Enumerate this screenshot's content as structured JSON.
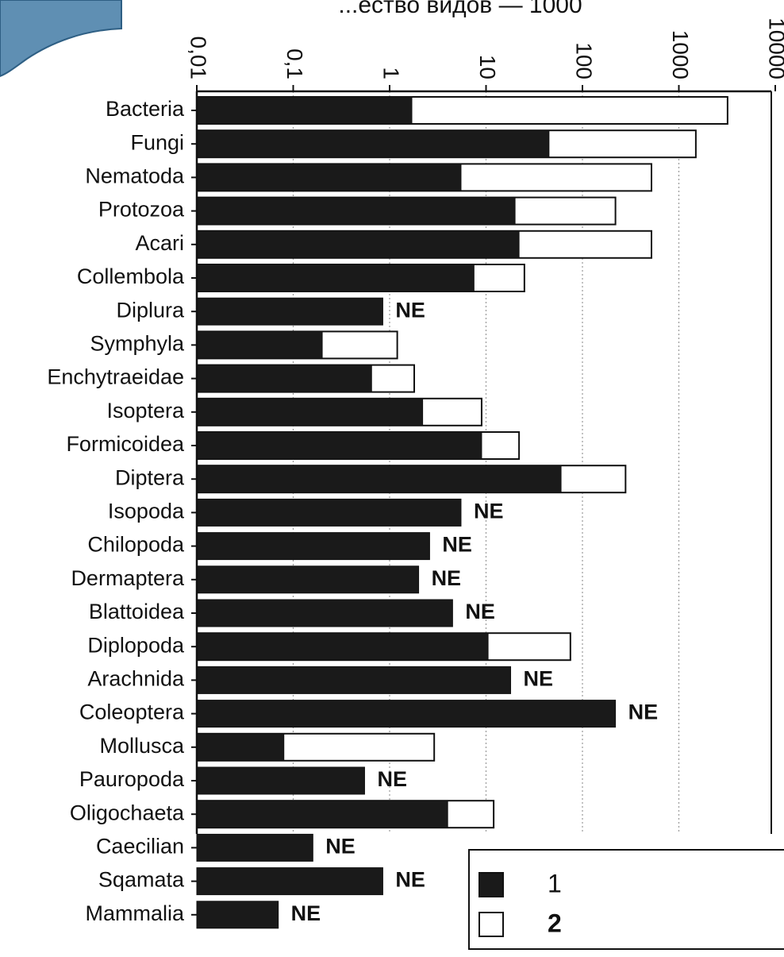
{
  "colors": {
    "known_bar": "#1a1a1a",
    "estimated_bar": "#ffffff",
    "decor_fill": "#5f8fb3",
    "decor_stroke": "#2e5f84",
    "axis": "#111111",
    "grid": "#9a9a9a"
  },
  "chart_data": {
    "type": "bar",
    "orientation": "horizontal",
    "x_scale": "log",
    "xlim": [
      0.01,
      10000
    ],
    "title_fragment": "...ество видов — 1000",
    "x_ticks": [
      "0,01",
      "0,1",
      "1",
      "10",
      "100",
      "1000",
      "10000"
    ],
    "grid": "vertical dotted at decades",
    "categories": [
      "Bacteria",
      "Fungi",
      "Nematoda",
      "Protozoa",
      "Acari",
      "Collembola",
      "Diplura",
      "Symphyla",
      "Enchytraeidae",
      "Isoptera",
      "Formicoidea",
      "Diptera",
      "Isopoda",
      "Chilopoda",
      "Dermaptera",
      "Blattoidea",
      "Diplopoda",
      "Arachnida",
      "Coleoptera",
      "Mollusca",
      "Pauropoda",
      "Oligochaeta",
      "Caecilian",
      "Sqamata",
      "Mammalia"
    ],
    "series": [
      {
        "name": "1",
        "values": [
          1.7,
          45,
          5.5,
          20,
          22,
          7.5,
          0.85,
          0.2,
          0.65,
          2.2,
          9,
          60,
          5.5,
          2.6,
          2,
          4.5,
          10.5,
          18,
          220,
          0.08,
          0.55,
          4,
          0.16,
          0.85,
          0.07
        ]
      },
      {
        "name": "2",
        "values": [
          3200,
          1500,
          520,
          220,
          520,
          25,
          null,
          1.2,
          1.8,
          9,
          22,
          280,
          null,
          null,
          null,
          null,
          75,
          null,
          null,
          2.9,
          null,
          12,
          null,
          null,
          null
        ]
      }
    ],
    "no_estimate_label": "NE",
    "legend": {
      "position": "bottom-right",
      "items": [
        {
          "label": "1",
          "swatch": "filled"
        },
        {
          "label": "2",
          "swatch": "open"
        }
      ]
    }
  }
}
